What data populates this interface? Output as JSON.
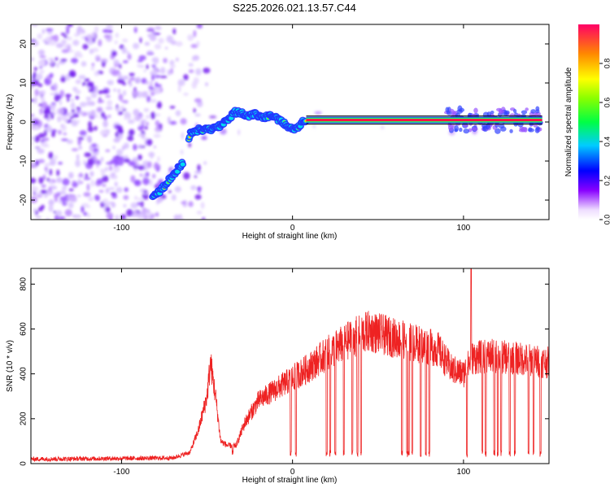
{
  "chart_data": [
    {
      "type": "heatmap",
      "title": "S225.2026.021.13.57.C44",
      "xlabel": "Height of straight line (km)",
      "ylabel": "Frequency (Hz)",
      "xlim": [
        -153,
        150
      ],
      "ylim": [
        -25,
        25
      ],
      "xticks": [
        -100,
        0,
        100
      ],
      "yticks": [
        -20,
        -10,
        0,
        10,
        20
      ],
      "colorbar": {
        "label": "Normalized spectral amplitude",
        "range": [
          0,
          1
        ],
        "ticks": [
          "0.0",
          "0.2",
          "0.4",
          "0.6",
          "0.8"
        ],
        "placement": "right"
      },
      "ridge": [
        {
          "x": -82,
          "y": -19.5
        },
        {
          "x": -78,
          "y": -18
        },
        {
          "x": -74,
          "y": -16
        },
        {
          "x": -70,
          "y": -13.5
        },
        {
          "x": -64,
          "y": -10.5
        },
        {
          "x": -60,
          "y": -3
        },
        {
          "x": -55,
          "y": -2
        },
        {
          "x": -48,
          "y": -2
        },
        {
          "x": -42,
          "y": -1
        },
        {
          "x": -38,
          "y": 0.5
        },
        {
          "x": -34,
          "y": 2.5
        },
        {
          "x": -30,
          "y": 2.5
        },
        {
          "x": -26,
          "y": 1.5
        },
        {
          "x": -22,
          "y": 2
        },
        {
          "x": -18,
          "y": 1
        },
        {
          "x": -14,
          "y": 1.5
        },
        {
          "x": -10,
          "y": 1
        },
        {
          "x": -6,
          "y": 0
        },
        {
          "x": -2,
          "y": -1.5
        },
        {
          "x": 2,
          "y": -2
        },
        {
          "x": 6,
          "y": 0
        },
        {
          "x": 8,
          "y": 0.5
        },
        {
          "x": 146,
          "y": 0.5
        }
      ]
    },
    {
      "type": "line",
      "xlabel": "Height of straight line (km)",
      "ylabel": "SNR (10 * v/v)",
      "xlim": [
        -153,
        150
      ],
      "ylim": [
        0,
        870
      ],
      "xticks": [
        -100,
        0,
        100
      ],
      "yticks": [
        0,
        200,
        400,
        600,
        800
      ],
      "color": "#ee2222",
      "envelope": [
        {
          "x": -153,
          "y": 20
        },
        {
          "x": -70,
          "y": 25
        },
        {
          "x": -60,
          "y": 50
        },
        {
          "x": -55,
          "y": 150
        },
        {
          "x": -50,
          "y": 300
        },
        {
          "x": -48,
          "y": 450
        },
        {
          "x": -45,
          "y": 300
        },
        {
          "x": -42,
          "y": 100
        },
        {
          "x": -38,
          "y": 80
        },
        {
          "x": -33,
          "y": 80
        },
        {
          "x": -28,
          "y": 180
        },
        {
          "x": -20,
          "y": 280
        },
        {
          "x": -10,
          "y": 330
        },
        {
          "x": 0,
          "y": 380
        },
        {
          "x": 10,
          "y": 430
        },
        {
          "x": 20,
          "y": 490
        },
        {
          "x": 35,
          "y": 560
        },
        {
          "x": 45,
          "y": 590
        },
        {
          "x": 60,
          "y": 560
        },
        {
          "x": 75,
          "y": 530
        },
        {
          "x": 85,
          "y": 510
        },
        {
          "x": 93,
          "y": 420
        },
        {
          "x": 100,
          "y": 400
        },
        {
          "x": 105,
          "y": 470
        },
        {
          "x": 115,
          "y": 480
        },
        {
          "x": 130,
          "y": 470
        },
        {
          "x": 150,
          "y": 450
        }
      ],
      "dropouts": [
        -35,
        -1,
        2,
        20,
        22,
        25,
        30,
        35,
        38,
        40,
        64,
        67,
        68,
        70,
        75,
        78,
        80,
        102,
        111,
        113,
        118,
        120,
        122,
        127,
        130,
        138,
        141,
        145
      ],
      "spikes": [
        {
          "x": 104.5,
          "y": 870
        }
      ]
    }
  ]
}
